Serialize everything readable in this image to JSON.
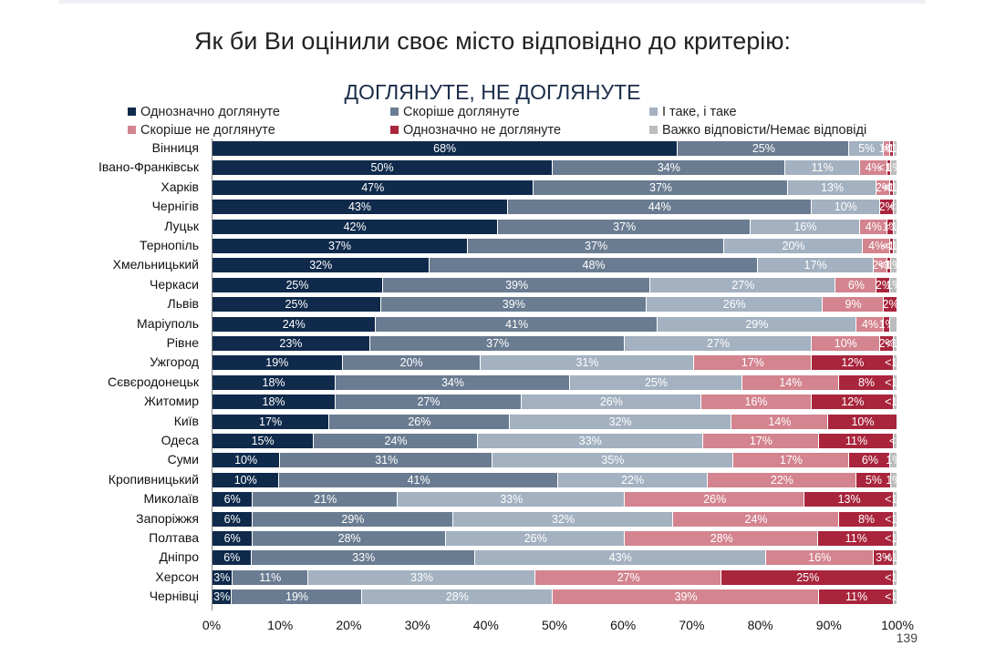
{
  "header": {
    "title": "Як би Ви оцінили своє місто відповідно до критерію:",
    "subtitle": "ДОГЛЯНУТЕ, НЕ ДОГЛЯНУТЕ",
    "page_number": "139"
  },
  "chart_data": {
    "type": "bar",
    "orientation": "horizontal",
    "stacked": true,
    "title": "ДОГЛЯНУТЕ, НЕ ДОГЛЯНУТЕ",
    "xlim": [
      0,
      100
    ],
    "x_ticks": [
      "0%",
      "10%",
      "20%",
      "30%",
      "40%",
      "50%",
      "60%",
      "70%",
      "80%",
      "90%",
      "100%"
    ],
    "legend_position": "top",
    "grid": false,
    "categories": [
      "Вінниця",
      "Івано-Франківськ",
      "Харків",
      "Чернігів",
      "Луцьк",
      "Тернопіль",
      "Хмельницький",
      "Черкаси",
      "Львів",
      "Маріуполь",
      "Рівне",
      "Ужгород",
      "Сєвєродонецьк",
      "Житомир",
      "Київ",
      "Одеса",
      "Суми",
      "Кропивницький",
      "Миколаїв",
      "Запоріжжя",
      "Полтава",
      "Дніпро",
      "Херсон",
      "Чернівці"
    ],
    "series": [
      {
        "name": "Однозначно доглянуте",
        "color": "#0f2a4b",
        "values": [
          68,
          50,
          47,
          43,
          42,
          37,
          32,
          25,
          25,
          24,
          23,
          19,
          18,
          18,
          17,
          15,
          10,
          10,
          6,
          6,
          6,
          6,
          3,
          3
        ],
        "labels": [
          "68%",
          "50%",
          "47%",
          "43%",
          "42%",
          "37%",
          "32%",
          "25%",
          "25%",
          "24%",
          "23%",
          "19%",
          "18%",
          "18%",
          "17%",
          "15%",
          "10%",
          "10%",
          "6%",
          "6%",
          "6%",
          "6%",
          "3%",
          "3%"
        ]
      },
      {
        "name": "Скоріше доглянуте",
        "color": "#6a7c91",
        "values": [
          25,
          34,
          37,
          44,
          37,
          37,
          48,
          39,
          39,
          41,
          37,
          20,
          34,
          27,
          26,
          24,
          31,
          41,
          21,
          29,
          28,
          33,
          11,
          19
        ],
        "labels": [
          "25%",
          "34%",
          "37%",
          "44%",
          "37%",
          "37%",
          "48%",
          "39%",
          "39%",
          "41%",
          "37%",
          "20%",
          "34%",
          "27%",
          "26%",
          "24%",
          "31%",
          "41%",
          "21%",
          "29%",
          "28%",
          "33%",
          "11%",
          "19%"
        ]
      },
      {
        "name": "І таке, і таке",
        "color": "#a3b1c0",
        "values": [
          5,
          11,
          13,
          10,
          16,
          20,
          17,
          27,
          26,
          29,
          27,
          31,
          25,
          26,
          32,
          33,
          35,
          22,
          33,
          32,
          26,
          43,
          33,
          28
        ],
        "labels": [
          "5%",
          "11%",
          "13%",
          "10%",
          "16%",
          "20%",
          "17%",
          "27%",
          "26%",
          "29%",
          "27%",
          "31%",
          "25%",
          "26%",
          "32%",
          "33%",
          "35%",
          "22%",
          "33%",
          "32%",
          "26%",
          "43%",
          "33%",
          "28%"
        ]
      },
      {
        "name": "Скоріше не доглянуте",
        "color": "#d3848f",
        "values": [
          1,
          4,
          2,
          0,
          4,
          4,
          2,
          6,
          9,
          4,
          10,
          17,
          14,
          16,
          14,
          17,
          17,
          22,
          26,
          24,
          28,
          16,
          27,
          39
        ],
        "labels": [
          "1%",
          "4%",
          "2%",
          "",
          "4%",
          "4%",
          "2%",
          "6%",
          "9%",
          "4%",
          "10%",
          "17%",
          "14%",
          "16%",
          "14%",
          "17%",
          "17%",
          "22%",
          "26%",
          "24%",
          "28%",
          "16%",
          "27%",
          "39%"
        ]
      },
      {
        "name": "Однозначно не доглянуте",
        "color": "#a8253c",
        "values": [
          0.5,
          0.5,
          0.5,
          2,
          1,
          0.5,
          0.5,
          2,
          2,
          1,
          2,
          12,
          8,
          12,
          10,
          11,
          6,
          5,
          13,
          8,
          11,
          3,
          25,
          11
        ],
        "labels": [
          "<1%",
          "<1%",
          "<1%",
          "2%",
          "1%",
          "<1%",
          "<1%",
          "2%",
          "2%",
          "1%",
          "2%",
          "12%",
          "8%",
          "12%",
          "10%",
          "11%",
          "6%",
          "5%",
          "13%",
          "8%",
          "11%",
          "3%",
          "25%",
          "11%"
        ]
      },
      {
        "name": "Важко відповісти/Немає відповіді",
        "color": "#bcbcbc",
        "values": [
          0.5,
          1,
          0.5,
          0.5,
          0.5,
          0.5,
          1,
          1,
          0,
          1,
          0.5,
          0.5,
          0.5,
          0.5,
          0,
          0.5,
          1,
          1,
          0.5,
          0.5,
          0.5,
          0.5,
          0.5,
          0.5
        ],
        "labels": [
          "<1%",
          "1%",
          "<1%",
          "<1",
          "<1%",
          "<1%",
          "1%",
          "1%",
          "",
          "",
          "<1%",
          "<1%",
          "<1%",
          "<1%",
          "",
          "<1",
          "1%",
          "1%",
          "<1%",
          "<1%",
          "<1%",
          "<1%",
          "<1%",
          "<1%"
        ]
      }
    ]
  }
}
